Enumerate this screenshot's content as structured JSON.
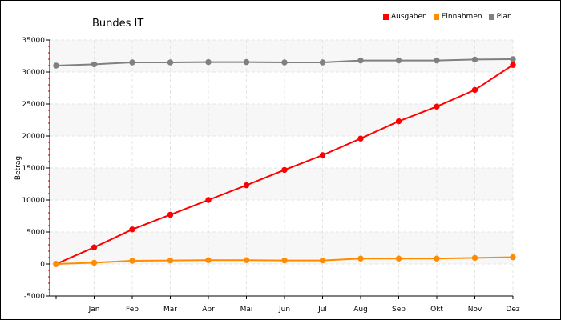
{
  "chart_data": {
    "type": "line",
    "title": "Bundes IT",
    "xlabel": "",
    "ylabel": "Betrag",
    "categories": [
      "",
      "Jan",
      "Feb",
      "Mar",
      "Apr",
      "Mai",
      "Jun",
      "Jul",
      "Aug",
      "Sep",
      "Okt",
      "Nov",
      "Dez"
    ],
    "ylim": [
      -5000,
      35000
    ],
    "yticks": [
      -5000,
      0,
      5000,
      10000,
      15000,
      20000,
      25000,
      30000,
      35000
    ],
    "grid": true,
    "legend_position": "top-right",
    "series": [
      {
        "name": "Ausgaben",
        "color": "#ff0000",
        "values": [
          0,
          2600,
          5400,
          7700,
          10000,
          12300,
          14700,
          17000,
          19600,
          22300,
          24600,
          27200,
          31100
        ]
      },
      {
        "name": "Einnahmen",
        "color": "#ff8c00",
        "values": [
          0,
          200,
          500,
          550,
          600,
          600,
          550,
          550,
          850,
          850,
          850,
          950,
          1050
        ]
      },
      {
        "name": "Plan",
        "color": "#808080",
        "values": [
          31000,
          31200,
          31500,
          31500,
          31550,
          31550,
          31500,
          31500,
          31800,
          31800,
          31800,
          31950,
          32000
        ]
      }
    ]
  }
}
